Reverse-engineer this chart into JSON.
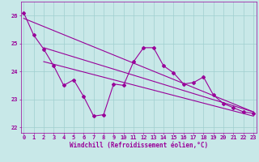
{
  "xlabel": "Windchill (Refroidissement éolien,°C)",
  "background_color": "#c8e8e8",
  "line_color": "#990099",
  "x_data": [
    0,
    1,
    2,
    3,
    4,
    5,
    6,
    7,
    8,
    9,
    10,
    11,
    12,
    13,
    14,
    15,
    16,
    17,
    18,
    19,
    20,
    21,
    22,
    23
  ],
  "y_data": [
    26.1,
    25.3,
    24.8,
    24.2,
    23.5,
    23.7,
    23.1,
    22.4,
    22.45,
    23.55,
    23.5,
    24.35,
    24.85,
    24.85,
    24.2,
    23.95,
    23.55,
    23.6,
    23.8,
    23.15,
    22.85,
    22.7,
    22.55,
    22.5
  ],
  "reg_line1": [
    [
      0,
      25.9
    ],
    [
      23,
      22.55
    ]
  ],
  "reg_line2": [
    [
      2,
      24.85
    ],
    [
      23,
      22.55
    ]
  ],
  "reg_line3": [
    [
      2,
      24.35
    ],
    [
      23,
      22.4
    ]
  ],
  "ylim": [
    21.8,
    26.5
  ],
  "xlim": [
    -0.3,
    23.3
  ],
  "yticks": [
    22,
    23,
    24,
    25,
    26
  ],
  "xticks": [
    0,
    1,
    2,
    3,
    4,
    5,
    6,
    7,
    8,
    9,
    10,
    11,
    12,
    13,
    14,
    15,
    16,
    17,
    18,
    19,
    20,
    21,
    22,
    23
  ],
  "grid_color": "#9fcfcf",
  "marker": "D",
  "marker_size": 2,
  "line_width": 0.8,
  "tick_fontsize": 5.0,
  "xlabel_fontsize": 5.5
}
